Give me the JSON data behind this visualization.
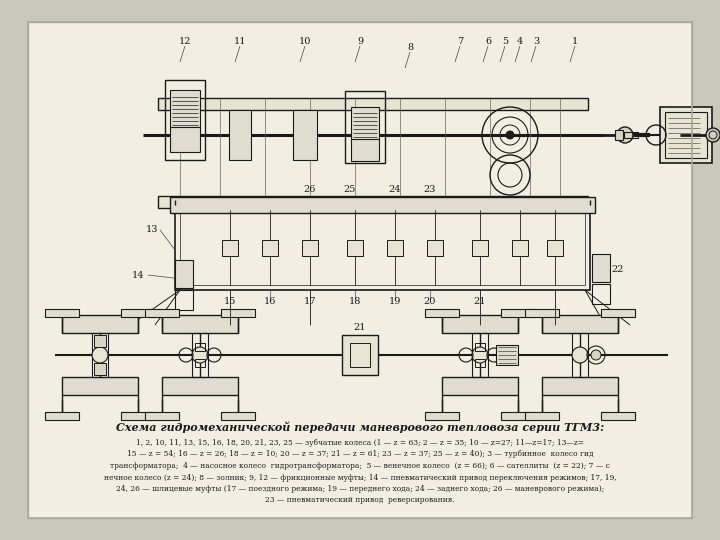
{
  "title": "Схема гидромеханической передачи маневрового тепловоза серии ТГМ3:",
  "caption_lines": [
    "1, 2, 10, 11, 13, 15, 16, 18, 20, 21, 23, 25 — зубчатые колеса (1 — z = 63; 2 — z = 35; 10 — z=27; 11—z=17; 13—z=",
    "15 — z = 54; 16 — z = 26; 18 — z = 10; 20 — z = 37; 21 — z = 61; 23 — z = 37; 25 — z = 40); 3 — турбинное  колесо гид",
    "трансформатора;  4 — насосное колесо  гидротрансформатора;  5 — венечное колесо  (z = 66);  6 — сателлиты  (z = 22); 7 — с",
    "нечное колесо (z = 24); 8 — золник; 9, 12 — фрикционные муфты; 14 — пневматический привод переключения режимов; 17,",
    "24, 26 — шлицевые муфты (17 — поездного режима; 19 — переднего хода; 24 — заднего хода; 26 — маневрового режима);",
    "23 — пневматический привод  реверсирования."
  ],
  "bg_color": "#c8c9b8",
  "page_bg": "#f2efe2",
  "line_color": "#1a1a1a",
  "figsize": [
    7.2,
    5.4
  ],
  "dpi": 100
}
